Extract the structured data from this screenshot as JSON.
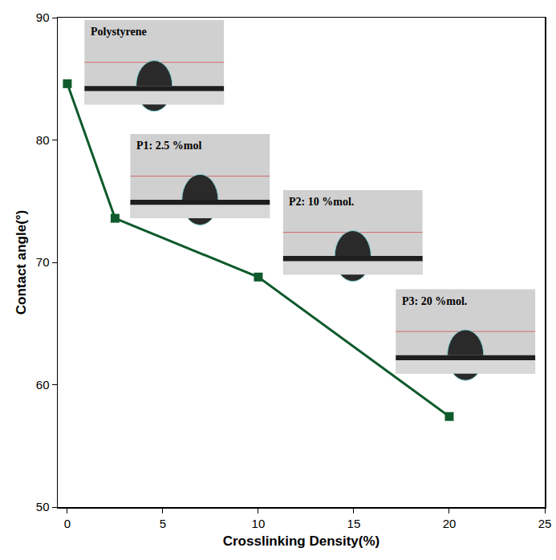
{
  "chart_data": {
    "type": "line",
    "xlabel": "Crosslinking Density(%)",
    "ylabel": "Contact angle(°)",
    "x": [
      0,
      2.5,
      10,
      20
    ],
    "values": [
      84.6,
      73.6,
      68.8,
      57.4
    ],
    "color": "#0f5a2b",
    "marker": "square",
    "line_style": "solid",
    "xlim": [
      -0.5,
      25
    ],
    "ylim": [
      50,
      90
    ],
    "xticks": [
      0,
      5,
      10,
      15,
      20,
      25
    ],
    "yticks": [
      50,
      60,
      70,
      80,
      90
    ],
    "grid": false,
    "annotations": [
      "Polystyrene",
      "P1: 2.5 %mol",
      "P2: 10 %mol.",
      "P3: 20 %mol."
    ]
  }
}
